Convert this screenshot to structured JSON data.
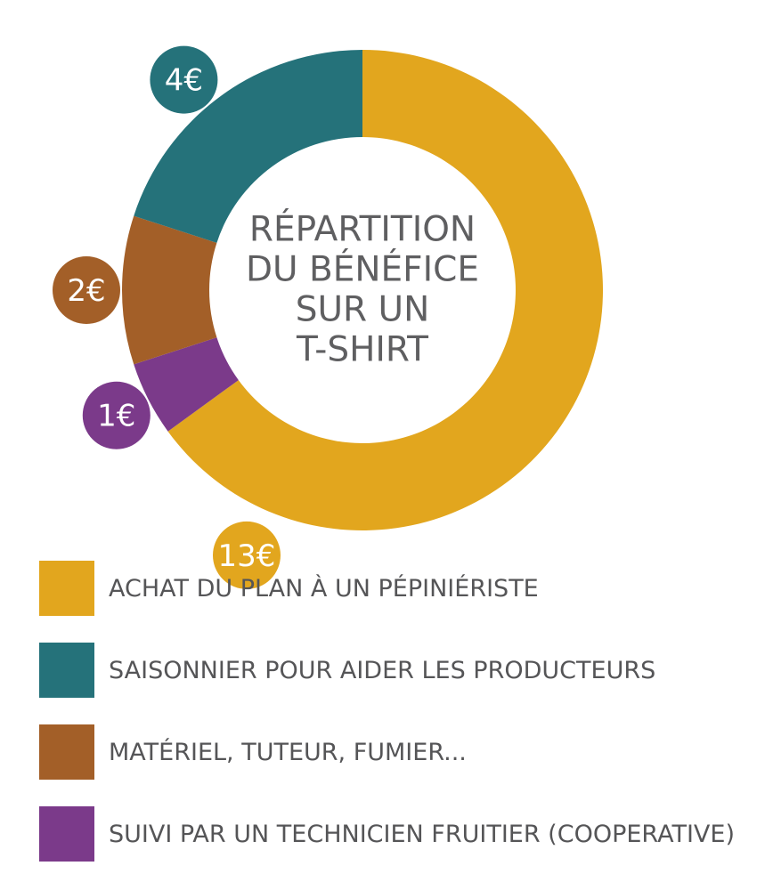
{
  "chart_data": {
    "type": "pie",
    "variant": "donut",
    "title": [
      "RÉPARTITION",
      "DU BÉNÉFICE",
      "SUR UN",
      "T-SHIRT"
    ],
    "slices": [
      {
        "label": "ACHAT DU PLAN À UN PÉPINIÉRISTE",
        "value": 13,
        "value_label": "13€",
        "color": "#E2A61E"
      },
      {
        "label": "SUIVI PAR UN TECHNICIEN FRUITIER (COOPERATIVE)",
        "value": 1,
        "value_label": "1€",
        "color": "#7B3A8A"
      },
      {
        "label": "MATÉRIEL, TUTEUR, FUMIER...",
        "value": 2,
        "value_label": "2€",
        "color": "#A35F28"
      },
      {
        "label": "SAISONNIER POUR AIDER LES PRODUCTEURS",
        "value": 4,
        "value_label": "4€",
        "color": "#25727A"
      }
    ],
    "legend": [
      {
        "label": "ACHAT DU PLAN À UN PÉPINIÉRISTE",
        "color": "#E2A61E"
      },
      {
        "label": "SAISONNIER POUR AIDER LES PRODUCTEURS",
        "color": "#25727A"
      },
      {
        "label": "MATÉRIEL, TUTEUR, FUMIER...",
        "color": "#A35F28"
      },
      {
        "label": "SUIVI PAR UN TECHNICIEN FRUITIER (COOPERATIVE)",
        "color": "#7B3A8A"
      }
    ],
    "legend_position": "bottom",
    "title_color": "#5F5F61"
  }
}
